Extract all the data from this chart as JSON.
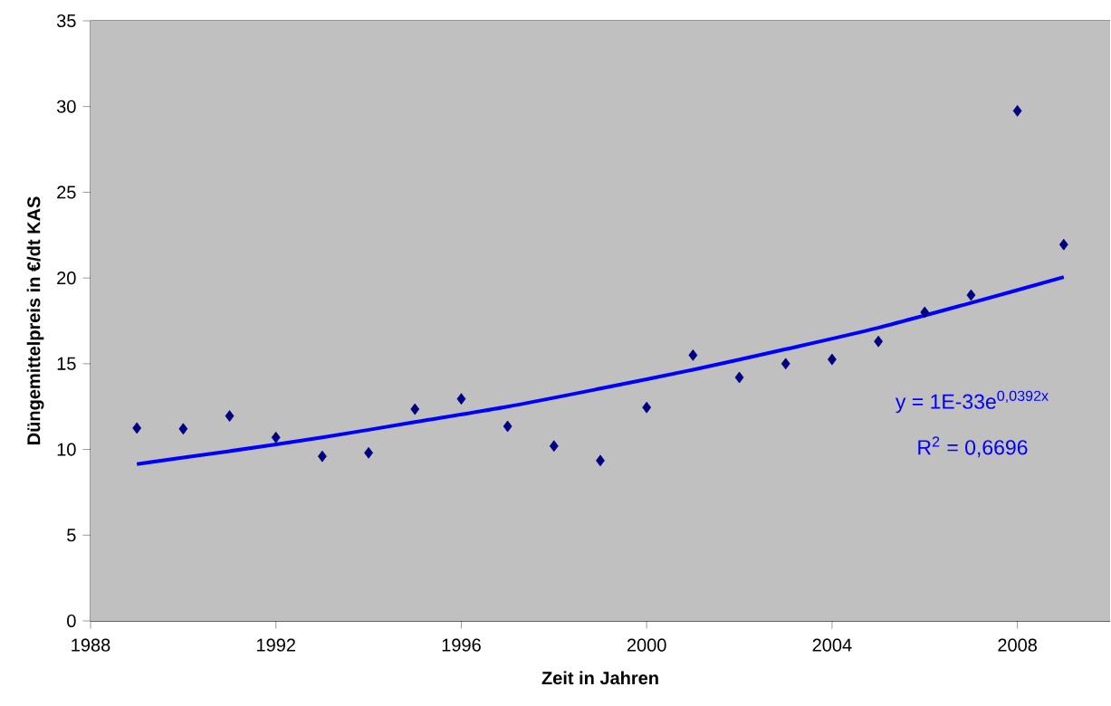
{
  "chart_data": {
    "type": "scatter",
    "xlabel": "Zeit in Jahren",
    "ylabel": "Düngemittelpreis in €/dt KAS",
    "xlim": [
      1988,
      2010
    ],
    "xticks": [
      1988,
      1992,
      1996,
      2000,
      2004,
      2008
    ],
    "ylim": [
      0,
      35
    ],
    "yticks": [
      0,
      5,
      10,
      15,
      20,
      25,
      30,
      35
    ],
    "grid": "y",
    "series": [
      {
        "marker": "diamond",
        "color": "#000080",
        "x": [
          1989,
          1990,
          1991,
          1992,
          1993,
          1994,
          1995,
          1996,
          1997,
          1998,
          1999,
          2000,
          2001,
          2002,
          2003,
          2004,
          2005,
          2006,
          2007,
          2008,
          2009
        ],
        "values": [
          11.25,
          11.2,
          11.95,
          10.7,
          9.6,
          9.8,
          12.35,
          12.95,
          11.35,
          10.2,
          9.35,
          12.45,
          15.5,
          14.2,
          15.0,
          15.25,
          16.3,
          18.0,
          19.0,
          29.75,
          21.95
        ]
      },
      {
        "type": "line",
        "marker": "none",
        "color": "#0000ff",
        "x": [
          1989,
          1991,
          1993,
          1995,
          1997,
          1999,
          2001,
          2003,
          2005,
          2007,
          2009
        ],
        "values": [
          9.15,
          9.9,
          10.7,
          11.6,
          12.5,
          13.55,
          14.65,
          15.85,
          17.1,
          18.55,
          20.05
        ]
      }
    ],
    "annotations": [
      "y = 1E-33e$^{0,0392x}$",
      "R$^{2}$ = 0,6696"
    ]
  }
}
